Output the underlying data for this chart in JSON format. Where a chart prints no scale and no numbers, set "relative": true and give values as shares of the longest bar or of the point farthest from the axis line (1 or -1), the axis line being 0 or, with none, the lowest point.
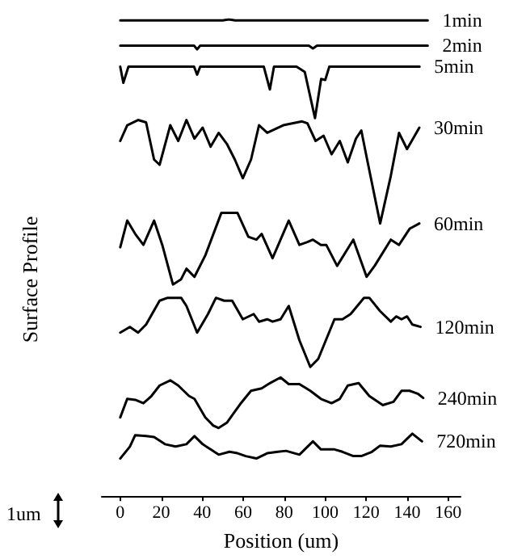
{
  "chart_data": {
    "type": "line",
    "relative": true,
    "xlabel": "Position (um)",
    "ylabel": "Surface Profile",
    "annotations": [
      "1um"
    ],
    "xlim": [
      -9,
      166
    ],
    "xticks": [
      0,
      20,
      40,
      60,
      80,
      100,
      120,
      140,
      160
    ],
    "grid": false,
    "legend": false,
    "marker": "none",
    "line_style": "solid",
    "series": [
      {
        "name": "1min",
        "color": "#000000",
        "x": [
          0,
          50,
          53,
          56,
          150
        ],
        "values": [
          0.998,
          0.998,
          1.0,
          0.998,
          0.998
        ]
      },
      {
        "name": "2min",
        "color": "#000000",
        "x": [
          0,
          36,
          37.5,
          39,
          92,
          94,
          96,
          150
        ],
        "values": [
          0.945,
          0.945,
          0.937,
          0.945,
          0.945,
          0.939,
          0.945,
          0.945
        ]
      },
      {
        "name": "5min",
        "color": "#000000",
        "x": [
          0,
          1.5,
          4,
          36,
          37.5,
          39,
          70,
          73,
          75,
          86,
          90,
          95,
          98,
          100,
          102,
          146
        ],
        "values": [
          0.901,
          0.867,
          0.901,
          0.901,
          0.884,
          0.901,
          0.901,
          0.853,
          0.901,
          0.901,
          0.89,
          0.793,
          0.875,
          0.873,
          0.901,
          0.901
        ]
      },
      {
        "name": "30min",
        "color": "#000000",
        "x": [
          0,
          3.4,
          8.7,
          12.6,
          16.5,
          19.2,
          24.4,
          28.3,
          32.3,
          36.2,
          40.2,
          44.1,
          48,
          52,
          55.9,
          59.8,
          63.8,
          67.7,
          71.7,
          79.5,
          88.7,
          91.3,
          95.3,
          99.2,
          103.1,
          107.1,
          111,
          115,
          117.6,
          120.2,
          126.8,
          132,
          136,
          139.9,
          145.9
        ],
        "values": [
          0.745,
          0.778,
          0.789,
          0.784,
          0.706,
          0.695,
          0.778,
          0.745,
          0.789,
          0.75,
          0.773,
          0.733,
          0.762,
          0.739,
          0.706,
          0.667,
          0.706,
          0.778,
          0.762,
          0.778,
          0.786,
          0.782,
          0.745,
          0.756,
          0.717,
          0.745,
          0.7,
          0.75,
          0.767,
          0.711,
          0.572,
          0.672,
          0.762,
          0.728,
          0.773
        ]
      },
      {
        "name": "60min",
        "color": "#000000",
        "x": [
          0,
          3.4,
          7.3,
          11.3,
          16.5,
          20.5,
          25.7,
          29.7,
          32.3,
          36.2,
          41.5,
          49.3,
          57.2,
          62.5,
          66.4,
          69,
          74.3,
          82.2,
          87.4,
          91.3,
          94,
          97.9,
          100.5,
          105.8,
          113.7,
          120.2,
          124.1,
          132,
          136,
          141.2,
          145.9
        ],
        "values": [
          0.522,
          0.578,
          0.55,
          0.527,
          0.578,
          0.527,
          0.444,
          0.455,
          0.477,
          0.46,
          0.505,
          0.594,
          0.594,
          0.544,
          0.538,
          0.55,
          0.499,
          0.578,
          0.527,
          0.533,
          0.538,
          0.527,
          0.527,
          0.483,
          0.538,
          0.46,
          0.483,
          0.538,
          0.527,
          0.561,
          0.572
        ]
      },
      {
        "name": "120min",
        "color": "#000000",
        "x": [
          0,
          4.7,
          8.7,
          12.6,
          19.2,
          23.1,
          29.7,
          32.3,
          37.5,
          42.8,
          46.7,
          50.7,
          54.6,
          59.8,
          65.1,
          67.7,
          71.7,
          74.3,
          78.2,
          82.2,
          87.4,
          92.7,
          96.6,
          104.5,
          108.4,
          112.4,
          118.9,
          121.5,
          126.8,
          132,
          134.6,
          137.2,
          139.9,
          142.5,
          146.5
        ],
        "values": [
          0.343,
          0.355,
          0.343,
          0.36,
          0.41,
          0.416,
          0.416,
          0.399,
          0.343,
          0.382,
          0.416,
          0.41,
          0.41,
          0.371,
          0.382,
          0.366,
          0.371,
          0.366,
          0.371,
          0.399,
          0.327,
          0.271,
          0.288,
          0.371,
          0.371,
          0.382,
          0.416,
          0.416,
          0.388,
          0.366,
          0.377,
          0.371,
          0.377,
          0.36,
          0.355
        ]
      },
      {
        "name": "240min",
        "color": "#000000",
        "x": [
          0,
          3.4,
          7.3,
          11.3,
          15.2,
          19.2,
          24.4,
          28.3,
          33.6,
          36.2,
          41.5,
          45.4,
          48,
          52,
          58.5,
          63.8,
          69,
          73,
          78.2,
          82.2,
          87.4,
          92.7,
          97.9,
          103.1,
          107.1,
          111,
          116.3,
          121.5,
          128.1,
          133.3,
          137.2,
          141.2,
          145.1,
          147.8
        ],
        "values": [
          0.165,
          0.204,
          0.202,
          0.195,
          0.21,
          0.232,
          0.243,
          0.232,
          0.21,
          0.204,
          0.165,
          0.148,
          0.143,
          0.154,
          0.193,
          0.221,
          0.226,
          0.237,
          0.249,
          0.235,
          0.235,
          0.221,
          0.204,
          0.195,
          0.204,
          0.232,
          0.237,
          0.21,
          0.191,
          0.198,
          0.221,
          0.221,
          0.215,
          0.206
        ]
      },
      {
        "name": "720min",
        "color": "#000000",
        "x": [
          0,
          4.7,
          7.3,
          12.6,
          16.5,
          21.8,
          27,
          32.3,
          36.2,
          40.2,
          44.1,
          48,
          53.3,
          57.2,
          61.2,
          66.4,
          71.7,
          76.9,
          80.9,
          87.4,
          94,
          97.9,
          104.5,
          108.4,
          113.7,
          117.6,
          122.8,
          126.8,
          132,
          137.2,
          142.5,
          147.2
        ],
        "values": [
          0.079,
          0.104,
          0.128,
          0.126,
          0.124,
          0.109,
          0.104,
          0.109,
          0.126,
          0.109,
          0.098,
          0.087,
          0.093,
          0.09,
          0.084,
          0.079,
          0.09,
          0.093,
          0.095,
          0.087,
          0.115,
          0.098,
          0.098,
          0.093,
          0.084,
          0.084,
          0.093,
          0.106,
          0.104,
          0.109,
          0.131,
          0.115
        ]
      }
    ]
  }
}
